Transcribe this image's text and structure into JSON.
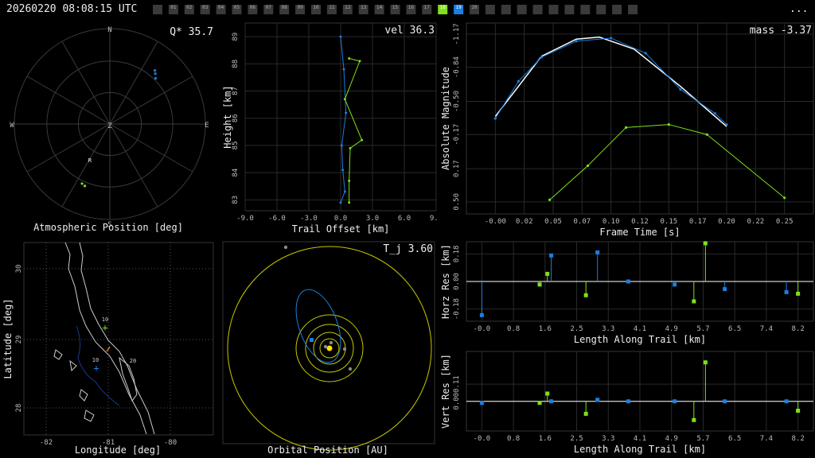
{
  "header": {
    "timestamp": "20260220 08:08:15 UTC",
    "menu": "...",
    "frames": [
      "",
      "01",
      "02",
      "03",
      "04",
      "05",
      "06",
      "07",
      "08",
      "09",
      "10",
      "11",
      "12",
      "13",
      "14",
      "15",
      "16",
      "17",
      "18",
      "19",
      "20",
      "",
      "",
      "",
      "",
      "",
      "",
      "",
      "",
      "",
      ""
    ],
    "frame_colors": {
      "18": "#7fe01a",
      "19": "#1a7fe0"
    }
  },
  "chart_data": [
    {
      "type": "scatter",
      "panel": "polar",
      "xlabel": "Atmospheric Position [deg]",
      "stat": "Q* 35.7",
      "directions": [
        "N",
        "E",
        "S",
        "W",
        "Z"
      ],
      "marker": "R",
      "series": [
        {
          "color": "#1a7fe0",
          "points": [
            [
              42,
              26
            ],
            [
              40,
              24
            ],
            [
              45,
              29
            ]
          ]
        },
        {
          "color": "#7fe01a",
          "points": [
            [
              -155,
              28
            ],
            [
              -158,
              27
            ]
          ]
        }
      ],
      "colors": {
        "a": "#1a7fe0",
        "b": "#7fe01a"
      }
    },
    {
      "type": "line",
      "panel": "trail",
      "xlabel": "Trail Offset [km]",
      "ylabel": "Height [km]",
      "stat": "vel 36.3",
      "xticks": [
        "-9.0",
        "-6.0",
        "-3.0",
        "0.0",
        "3.0",
        "6.0",
        "9.0"
      ],
      "yticks": [
        "89",
        "88",
        "87",
        "86",
        "85",
        "84",
        "83"
      ],
      "xlim": [
        -9.0,
        9.0
      ],
      "ylim": [
        82.6,
        89.5
      ],
      "series": [
        {
          "color": "#1a7fe0",
          "points": [
            [
              0.0,
              89.0
            ],
            [
              0.3,
              87.8
            ],
            [
              0.5,
              86.2
            ],
            [
              0.1,
              85.0
            ],
            [
              0.2,
              84.1
            ],
            [
              0.4,
              83.3
            ],
            [
              0.0,
              82.9
            ]
          ]
        },
        {
          "color": "#7fe01a",
          "points": [
            [
              0.8,
              88.2
            ],
            [
              1.8,
              88.1
            ],
            [
              0.4,
              86.7
            ],
            [
              2.0,
              85.2
            ],
            [
              0.9,
              84.9
            ],
            [
              0.8,
              83.7
            ],
            [
              0.8,
              82.9
            ]
          ]
        }
      ]
    },
    {
      "type": "line",
      "panel": "magnitude",
      "xlabel": "Frame Time [s]",
      "ylabel": "Absolute Magnitude",
      "stat": "mass -3.37",
      "xticks": [
        "-0.00",
        "0.02",
        "0.05",
        "0.07",
        "0.10",
        "0.12",
        "0.15",
        "0.17",
        "0.20",
        "0.22",
        "0.25"
      ],
      "yticks": [
        "-1.17",
        "-0.84",
        "-0.50",
        "-0.17",
        "0.17",
        "0.50"
      ],
      "xlim": [
        -0.025,
        0.275
      ],
      "ylim": [
        0.62,
        -1.28
      ],
      "fit": [
        [
          0.0,
          -0.35
        ],
        [
          0.04,
          -0.95
        ],
        [
          0.07,
          -1.12
        ],
        [
          0.09,
          -1.14
        ],
        [
          0.12,
          -1.02
        ],
        [
          0.16,
          -0.65
        ],
        [
          0.2,
          -0.25
        ]
      ],
      "series": [
        {
          "color": "#1a7fe0",
          "points": [
            [
              0.0,
              -0.33
            ],
            [
              0.02,
              -0.7
            ],
            [
              0.04,
              -0.94
            ],
            [
              0.07,
              -1.1
            ],
            [
              0.1,
              -1.13
            ],
            [
              0.13,
              -0.98
            ],
            [
              0.16,
              -0.62
            ],
            [
              0.19,
              -0.38
            ],
            [
              0.2,
              -0.27
            ]
          ]
        },
        {
          "color": "#7fe01a",
          "points": [
            [
              0.047,
              0.48
            ],
            [
              0.08,
              0.14
            ],
            [
              0.113,
              -0.24
            ],
            [
              0.15,
              -0.27
            ],
            [
              0.183,
              -0.17
            ],
            [
              0.25,
              0.46
            ]
          ]
        }
      ]
    },
    {
      "type": "scatter",
      "panel": "map",
      "xlabel": "Longitude [deg]",
      "ylabel": "Latitude [deg]",
      "xticks": [
        "-82",
        "-81",
        "-80"
      ],
      "yticks": [
        "30",
        "29",
        "28"
      ],
      "labels": [
        "10",
        "20",
        "10"
      ],
      "colors": {
        "a": "#1a7fe0",
        "b": "#7fe01a"
      }
    },
    {
      "type": "scatter",
      "panel": "orbit",
      "xlabel": "Orbital Position [AU]",
      "stat": "T_j 3.60",
      "colors": {
        "sun": "#ffe000",
        "ring": "#c8c800",
        "orbit": "#1a7fe0"
      }
    },
    {
      "type": "scatter",
      "panel": "horz-res",
      "xlabel": "Length Along Trail [km]",
      "ylabel": "Horz Res [km]",
      "xticks": [
        "-0.0",
        "0.8",
        "1.6",
        "2.5",
        "3.3",
        "4.1",
        "4.9",
        "5.7",
        "6.5",
        "7.4",
        "8.2"
      ],
      "yticks": [
        "0.18",
        "0.00",
        "-0.18"
      ],
      "xlim": [
        -0.4,
        8.6
      ],
      "ylim": [
        -0.26,
        0.26
      ],
      "series": [
        {
          "color": "#1a7fe0",
          "points": [
            [
              0.0,
              -0.22
            ],
            [
              1.8,
              0.17
            ],
            [
              3.0,
              0.19
            ],
            [
              3.8,
              0.0
            ],
            [
              5.0,
              -0.02
            ],
            [
              6.3,
              -0.05
            ],
            [
              7.9,
              -0.07
            ]
          ]
        },
        {
          "color": "#7fe01a",
          "points": [
            [
              1.5,
              -0.02
            ],
            [
              1.7,
              0.05
            ],
            [
              2.7,
              -0.09
            ],
            [
              5.5,
              -0.13
            ],
            [
              5.8,
              0.25
            ],
            [
              8.2,
              -0.08
            ]
          ]
        }
      ]
    },
    {
      "type": "scatter",
      "panel": "vert-res",
      "xlabel": "Length Along Trail [km]",
      "ylabel": "Vert Res [km]",
      "xticks": [
        "-0.0",
        "0.8",
        "1.6",
        "2.5",
        "3.3",
        "4.1",
        "4.9",
        "5.7",
        "6.5",
        "7.4",
        "8.2"
      ],
      "yticks": [
        "0.11",
        "0.00"
      ],
      "xlim": [
        -0.4,
        8.6
      ],
      "ylim": [
        -0.19,
        0.32
      ],
      "series": [
        {
          "color": "#1a7fe0",
          "points": [
            [
              0.0,
              -0.01
            ],
            [
              1.8,
              0.0
            ],
            [
              3.0,
              0.01
            ],
            [
              3.8,
              0.0
            ],
            [
              5.0,
              0.0
            ],
            [
              6.3,
              0.0
            ],
            [
              7.9,
              0.0
            ]
          ]
        },
        {
          "color": "#7fe01a",
          "points": [
            [
              1.5,
              -0.01
            ],
            [
              1.7,
              0.05
            ],
            [
              2.7,
              -0.08
            ],
            [
              5.5,
              -0.12
            ],
            [
              5.8,
              0.25
            ],
            [
              8.2,
              -0.06
            ]
          ]
        }
      ]
    }
  ]
}
